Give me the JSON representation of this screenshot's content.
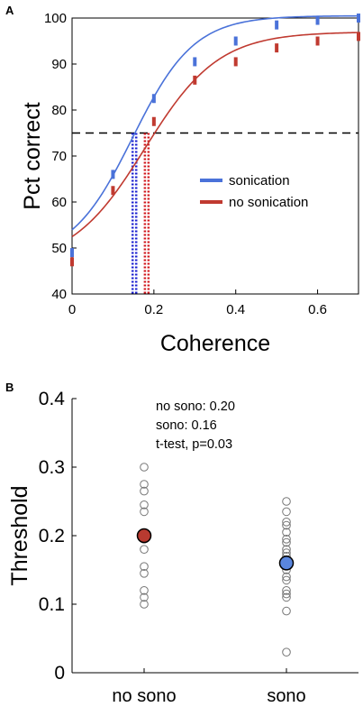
{
  "chart_data": [
    {
      "panel": "A",
      "type": "line",
      "title": "",
      "xlabel": "Coherence",
      "ylabel": "Pct correct",
      "xlim": [
        0,
        0.7
      ],
      "ylim": [
        40,
        100
      ],
      "xticks": [
        0,
        0.2,
        0.4,
        0.6
      ],
      "xtick_labels": [
        "0",
        "0.2",
        "0.4",
        "0.6"
      ],
      "yticks": [
        40,
        50,
        60,
        70,
        80,
        90,
        100
      ],
      "ytick_labels": [
        "40",
        "50",
        "60",
        "70",
        "80",
        "90",
        "100"
      ],
      "grid": false,
      "legend_position": "middle-right",
      "reference_line": {
        "y": 75,
        "style": "dashed"
      },
      "series": [
        {
          "name": "sonication",
          "color": "#4a72d9",
          "threshold_line_color": "#1a1fd0",
          "x": [
            0,
            0.1,
            0.2,
            0.3,
            0.4,
            0.5,
            0.6,
            0.7
          ],
          "y": [
            49,
            66,
            82.5,
            90.5,
            95,
            98.5,
            99.5,
            100
          ],
          "threshold": 0.148,
          "fit": {
            "lower": 47.5,
            "upper": 100.5,
            "mu": 0.148,
            "s": 0.075
          }
        },
        {
          "name": "no sonication",
          "color": "#c03a30",
          "threshold_line_color": "#d0151b",
          "x": [
            0,
            0.1,
            0.2,
            0.3,
            0.4,
            0.5,
            0.6,
            0.7
          ],
          "y": [
            47,
            62.5,
            77.5,
            86.5,
            90.5,
            93.5,
            95,
            96
          ],
          "threshold": 0.178,
          "fit": {
            "lower": 46.3,
            "upper": 97.0,
            "mu": 0.178,
            "s": 0.09
          }
        }
      ]
    },
    {
      "panel": "B",
      "type": "scatter",
      "title": "",
      "xlabel": "",
      "ylabel": "Threshold",
      "categories": [
        "no sono",
        "sono"
      ],
      "ylim": [
        0,
        0.4
      ],
      "yticks": [
        0,
        0.1,
        0.2,
        0.3,
        0.4
      ],
      "ytick_labels": [
        "0",
        "0.1",
        "0.2",
        "0.3",
        "0.4"
      ],
      "grid": false,
      "annotations": [
        "no sono: 0.20",
        "sono: 0.16",
        "t-test, p=0.03"
      ],
      "series": [
        {
          "name": "no sono",
          "points": [
            0.3,
            0.275,
            0.265,
            0.245,
            0.235,
            0.2,
            0.195,
            0.18,
            0.155,
            0.145,
            0.12,
            0.11,
            0.1
          ],
          "mean": 0.2,
          "mean_color": "#b83a30"
        },
        {
          "name": "sono",
          "points": [
            0.25,
            0.235,
            0.22,
            0.215,
            0.205,
            0.195,
            0.19,
            0.18,
            0.175,
            0.17,
            0.165,
            0.16,
            0.15,
            0.14,
            0.135,
            0.12,
            0.115,
            0.11,
            0.09,
            0.03
          ],
          "mean": 0.16,
          "mean_color": "#5a86de"
        }
      ]
    }
  ],
  "panels": {
    "a": {
      "letter": "A"
    },
    "b": {
      "letter": "B"
    }
  }
}
